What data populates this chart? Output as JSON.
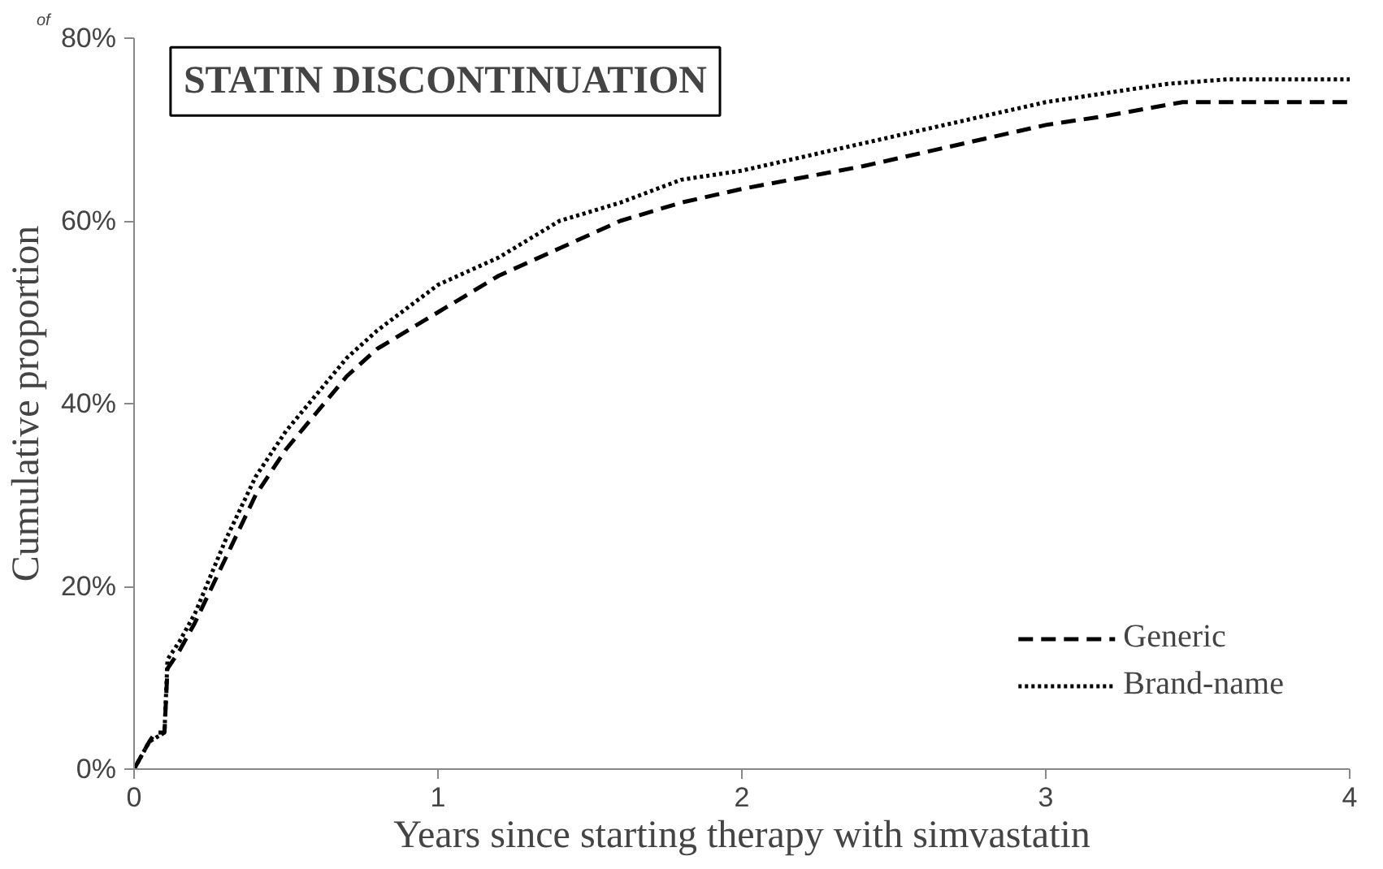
{
  "chart_data": {
    "type": "line",
    "title": "STATIN DISCONTINUATION",
    "xlabel": "Years since starting therapy with simvastatin",
    "ylabel": "Cumulative proportion",
    "annotations": [
      "of"
    ],
    "xlim": [
      0,
      4
    ],
    "xticks": [
      0,
      1,
      2,
      3,
      4
    ],
    "ylim": [
      0,
      80
    ],
    "yticks": [
      {
        "value": 0,
        "label": "0%"
      },
      {
        "value": 20,
        "label": "20%"
      },
      {
        "value": 40,
        "label": "40%"
      },
      {
        "value": 60,
        "label": "60%"
      },
      {
        "value": 80,
        "label": "80%"
      }
    ],
    "grid": false,
    "legend": "bottom right",
    "marker": "none",
    "series": [
      {
        "name": "Generic",
        "color": "#000000",
        "line_style": "dashed",
        "x": [
          0,
          0.05,
          0.07,
          0.1,
          0.11,
          0.15,
          0.2,
          0.3,
          0.4,
          0.5,
          0.6,
          0.7,
          0.8,
          1.0,
          1.2,
          1.4,
          1.6,
          1.8,
          2.0,
          2.4,
          2.8,
          3.0,
          3.2,
          3.45,
          4.0
        ],
        "values": [
          0,
          3,
          4,
          4,
          11,
          13,
          16,
          23,
          30,
          35,
          39,
          43,
          46,
          50,
          54,
          57,
          60,
          62,
          63.5,
          66,
          69,
          70.5,
          71.5,
          73,
          73
        ]
      },
      {
        "name": "Brand-name",
        "color": "#000000",
        "line_style": "dotted",
        "x": [
          0,
          0.05,
          0.1,
          0.11,
          0.15,
          0.2,
          0.3,
          0.4,
          0.5,
          0.6,
          0.7,
          0.8,
          1.0,
          1.2,
          1.4,
          1.6,
          1.8,
          2.0,
          2.4,
          2.8,
          3.0,
          3.4,
          3.6,
          4.0
        ],
        "values": [
          0,
          3,
          4,
          12,
          14,
          17,
          25,
          32,
          37,
          41,
          45,
          48,
          53,
          56,
          60,
          62,
          64.5,
          65.5,
          68.5,
          71.5,
          73,
          75,
          75.5,
          75.5
        ]
      }
    ]
  }
}
